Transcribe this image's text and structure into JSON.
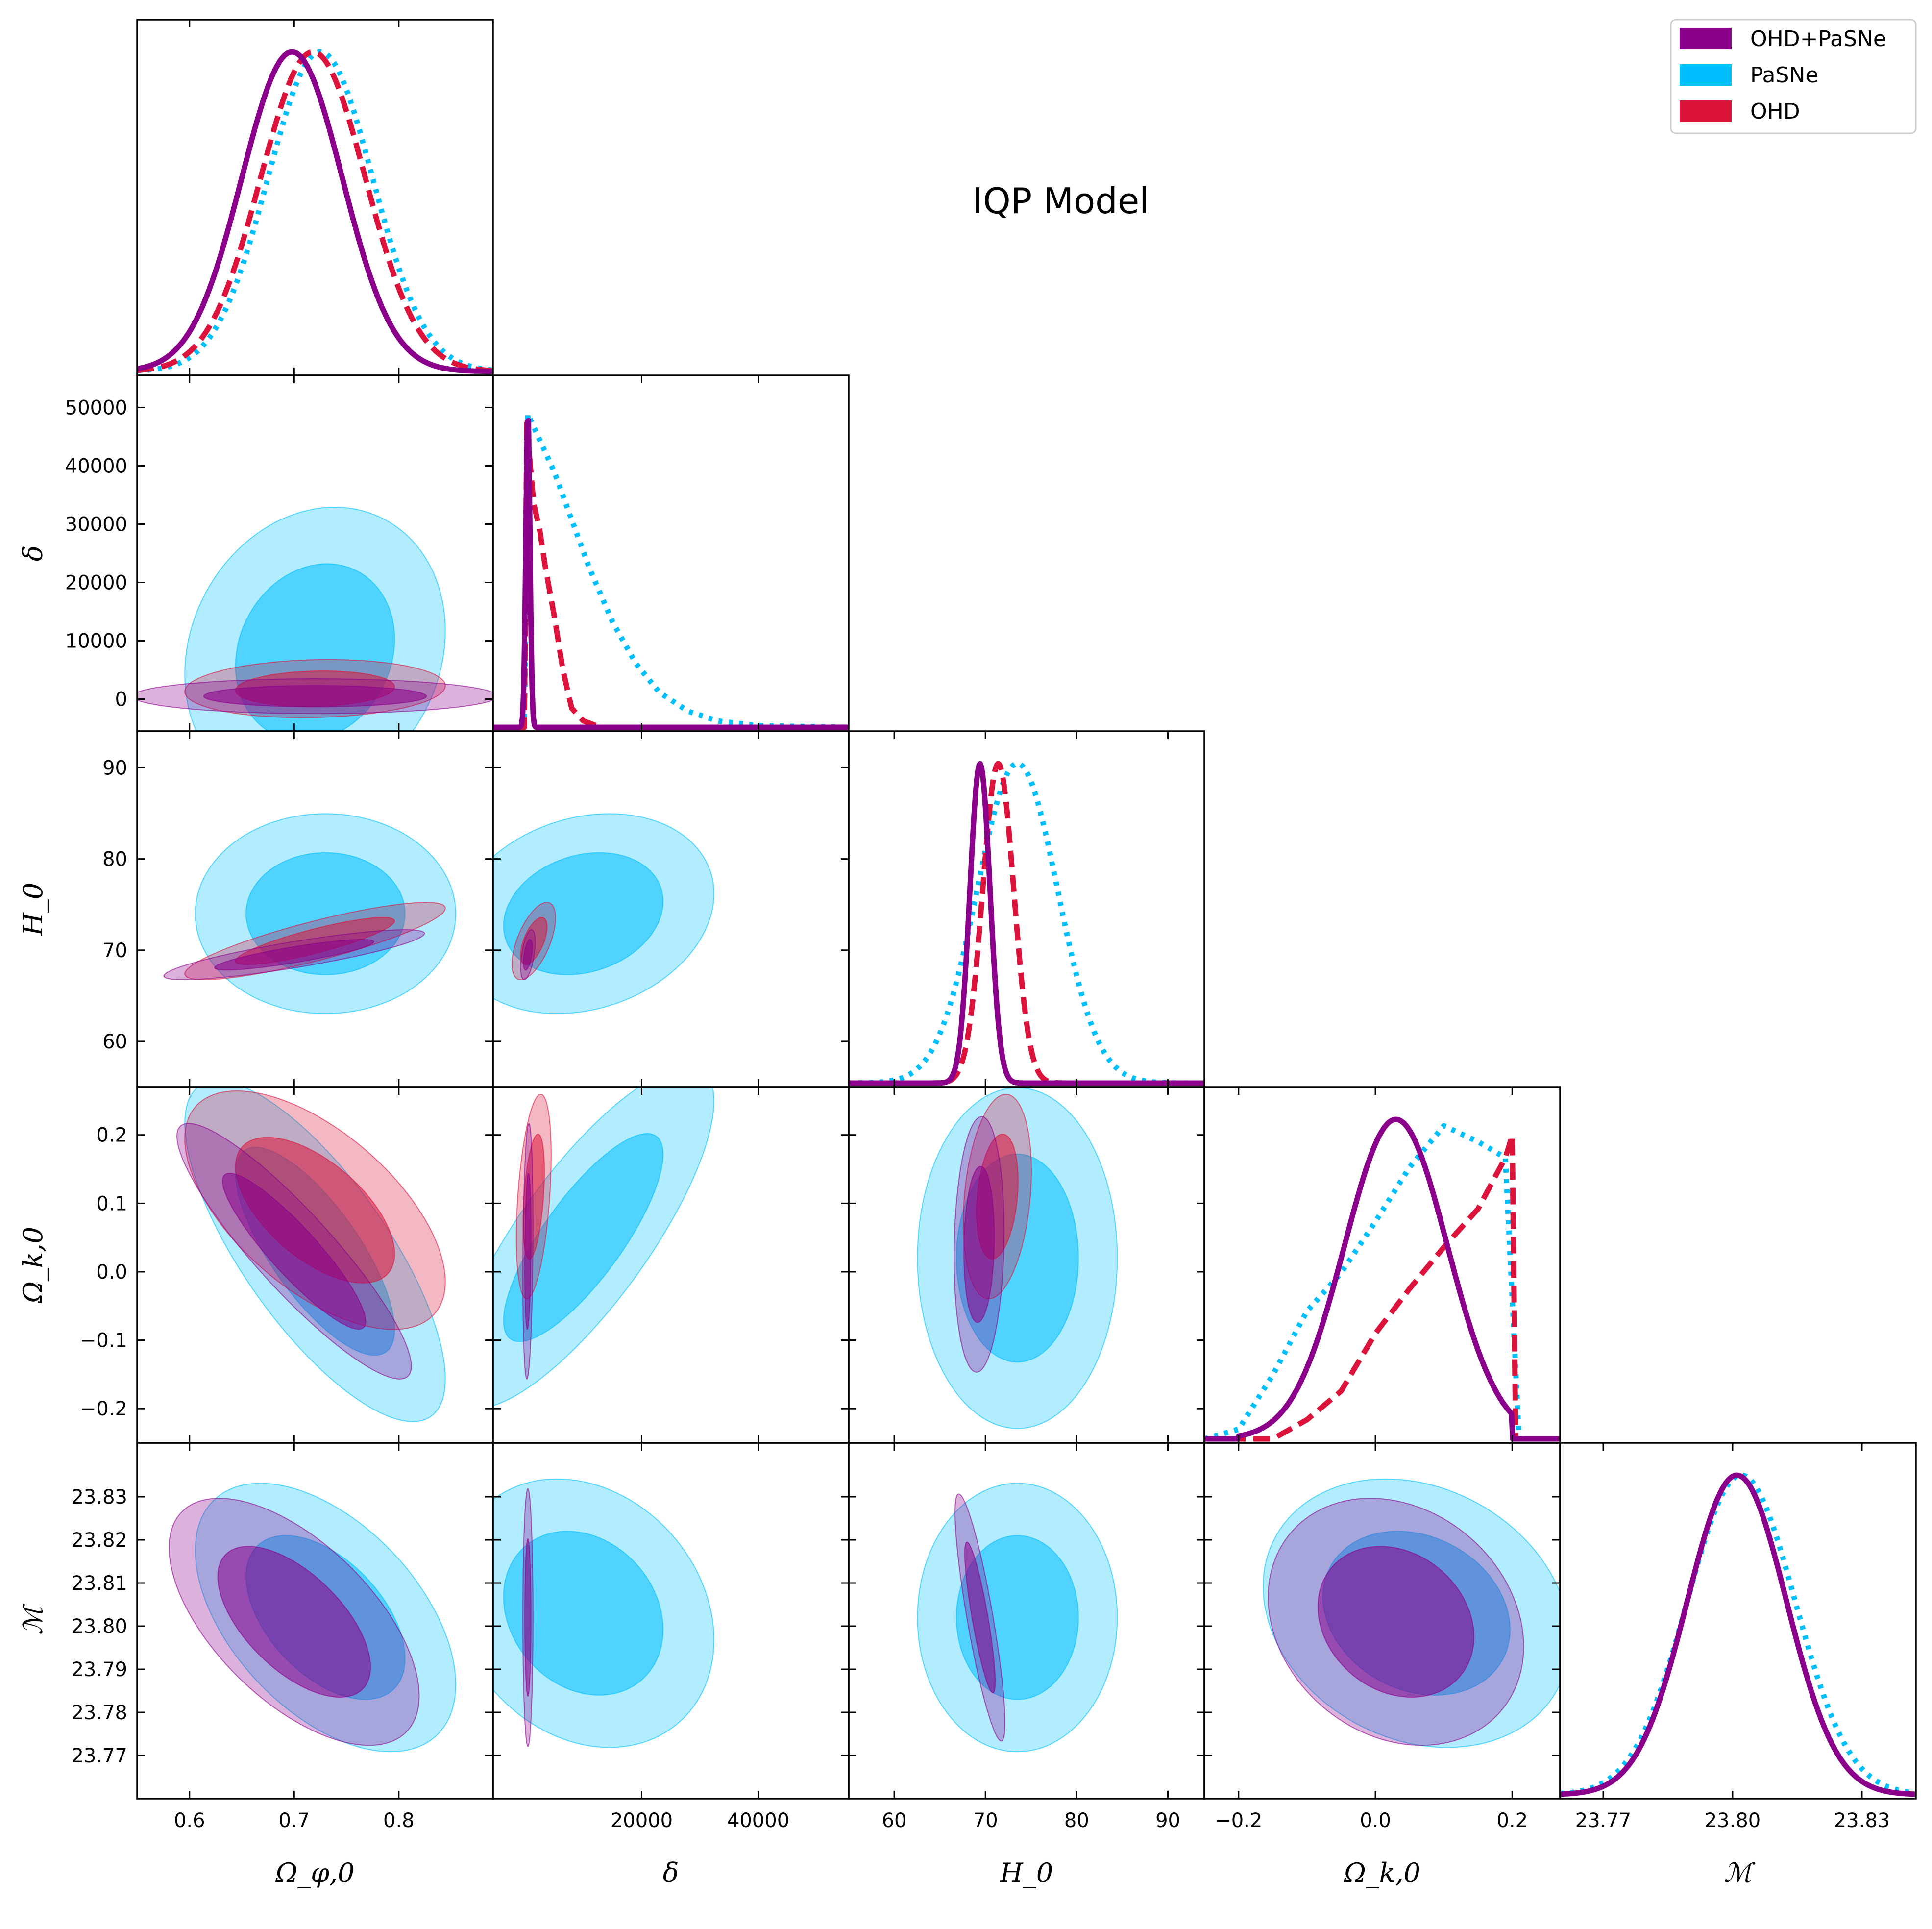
{
  "title": "IQP Model",
  "legend": {
    "placement": "top-right",
    "entries": [
      {
        "label": "OHD+PaSNe",
        "color": "#8b008b",
        "line": "solid"
      },
      {
        "label": "PaSNe",
        "color": "#00bfff",
        "line": "dotted"
      },
      {
        "label": "OHD",
        "color": "#dc143c",
        "line": "dashed"
      }
    ]
  },
  "chart_data": {
    "type": "corner",
    "parameters": [
      {
        "label": "Ω_φ,0",
        "range": [
          0.55,
          0.89
        ],
        "ticks": [
          0.6,
          0.7,
          0.8
        ],
        "tick_labels": [
          "0.6",
          "0.7",
          "0.8"
        ]
      },
      {
        "label": "δ",
        "range": [
          -5500,
          55500
        ],
        "ticks": [
          20000,
          40000
        ],
        "tick_labels": [
          "20000",
          "40000"
        ],
        "y_ticks": [
          0,
          10000,
          20000,
          30000,
          40000,
          50000
        ],
        "y_tick_labels": [
          "0",
          "10000",
          "20000",
          "30000",
          "40000",
          "50000"
        ]
      },
      {
        "label": "H_0",
        "range": [
          55,
          94
        ],
        "ticks": [
          60,
          70,
          80,
          90
        ],
        "tick_labels": [
          "60",
          "70",
          "80",
          "90"
        ]
      },
      {
        "label": "Ω_k,0",
        "range": [
          -0.25,
          0.27
        ],
        "ticks": [
          -0.2,
          0.0,
          0.2
        ],
        "tick_labels": [
          "−0.2",
          "0.0",
          "0.2"
        ],
        "y_ticks": [
          -0.2,
          -0.1,
          0.0,
          0.1,
          0.2
        ],
        "y_tick_labels": [
          "−0.2",
          "−0.1",
          "0.0",
          "0.1",
          "0.2"
        ]
      },
      {
        "label": "ℳ",
        "range": [
          23.76,
          23.8425
        ],
        "ticks": [
          23.77,
          23.8,
          23.83
        ],
        "tick_labels": [
          "23.77",
          "23.80",
          "23.83"
        ],
        "y_ticks": [
          23.77,
          23.78,
          23.79,
          23.8,
          23.81,
          23.82,
          23.83
        ],
        "y_tick_labels": [
          "23.77",
          "23.78",
          "23.79",
          "23.80",
          "23.81",
          "23.82",
          "23.83"
        ]
      }
    ],
    "series": [
      {
        "name": "OHD+PaSNe",
        "color": "#8b008b",
        "line": "solid",
        "posteriors": [
          {
            "param": 0,
            "shape": "gauss",
            "mean": 0.698,
            "sd": 0.048
          },
          {
            "param": 1,
            "shape": "gauss",
            "mean": 500,
            "sd": 350
          },
          {
            "param": 2,
            "shape": "gauss",
            "mean": 69.4,
            "sd": 1.1
          },
          {
            "param": 3,
            "shape": "gauss",
            "mean": 0.03,
            "sd": 0.075,
            "lo": -0.2,
            "hi": 0.2
          },
          {
            "param": 4,
            "shape": "gauss",
            "mean": 23.801,
            "sd": 0.0115
          }
        ],
        "contours": [
          {
            "x": 0,
            "y": 1,
            "cx": 0.72,
            "cy": 500,
            "sx": 0.07,
            "sy": 1200,
            "rho": 0.0
          },
          {
            "x": 0,
            "y": 2,
            "cx": 0.7,
            "cy": 69.5,
            "sx": 0.05,
            "sy": 1.1,
            "rho": 0.85
          },
          {
            "x": 1,
            "y": 2,
            "cx": 500,
            "cy": 69.5,
            "sx": 500,
            "sy": 1.1,
            "rho": 0.5
          },
          {
            "x": 0,
            "y": 3,
            "cx": 0.7,
            "cy": 0.03,
            "sx": 0.045,
            "sy": 0.075,
            "rho": -0.9
          },
          {
            "x": 1,
            "y": 3,
            "cx": 500,
            "cy": 0.03,
            "sx": 350,
            "sy": 0.075,
            "rho": 0.2
          },
          {
            "x": 2,
            "y": 3,
            "cx": 69.3,
            "cy": 0.04,
            "sx": 1.1,
            "sy": 0.075,
            "rho": 0.1
          },
          {
            "x": 0,
            "y": 4,
            "cx": 0.7,
            "cy": 23.801,
            "sx": 0.048,
            "sy": 0.0115,
            "rho": -0.6
          },
          {
            "x": 1,
            "y": 4,
            "cx": 500,
            "cy": 23.802,
            "sx": 350,
            "sy": 0.012,
            "rho": 0.0
          },
          {
            "x": 2,
            "y": 4,
            "cx": 69.4,
            "cy": 23.802,
            "sx": 1.1,
            "sy": 0.0115,
            "rho": -0.85
          },
          {
            "x": 3,
            "y": 4,
            "cx": 0.03,
            "cy": 23.801,
            "sx": 0.075,
            "sy": 0.0115,
            "rho": -0.2
          }
        ]
      },
      {
        "name": "PaSNe",
        "color": "#00bfff",
        "line": "dotted",
        "posteriors": [
          {
            "param": 0,
            "shape": "gauss",
            "mean": 0.725,
            "sd": 0.05
          },
          {
            "param": 1,
            "shape": "curve",
            "x": [
              -5500,
              -100,
              500,
              2500,
              5000,
              8000,
              11000,
              15000,
              19000,
              23000,
              28000,
              33000,
              40000,
              55500
            ],
            "y": [
              0,
              0,
              0.98,
              0.9,
              0.8,
              0.65,
              0.5,
              0.33,
              0.2,
              0.11,
              0.05,
              0.02,
              0.005,
              0
            ]
          },
          {
            "param": 2,
            "shape": "gauss",
            "mean": 73.5,
            "sd": 4.4
          },
          {
            "param": 3,
            "shape": "curve",
            "x": [
              -0.25,
              -0.2,
              -0.15,
              -0.1,
              -0.05,
              0.0,
              0.05,
              0.1,
              0.15,
              0.19,
              0.21,
              0.27
            ],
            "y": [
              0,
              0.03,
              0.2,
              0.4,
              0.52,
              0.68,
              0.85,
              0.98,
              0.93,
              0.88,
              0,
              0
            ]
          },
          {
            "param": 4,
            "shape": "gauss",
            "mean": 23.802,
            "sd": 0.0125
          }
        ],
        "contours": [
          {
            "x": 0,
            "y": 1,
            "cx": 0.72,
            "cy": 8000,
            "sx": 0.05,
            "sy": 10000,
            "rho": 0.15
          },
          {
            "x": 0,
            "y": 2,
            "cx": 0.73,
            "cy": 74,
            "sx": 0.05,
            "sy": 4.4,
            "rho": 0.0
          },
          {
            "x": 1,
            "y": 2,
            "cx": 10000,
            "cy": 74,
            "sx": 9000,
            "sy": 4.4,
            "rho": 0.2
          },
          {
            "x": 0,
            "y": 3,
            "cx": 0.72,
            "cy": 0.03,
            "sx": 0.05,
            "sy": 0.1,
            "rho": -0.75
          },
          {
            "x": 1,
            "y": 3,
            "cx": 10000,
            "cy": 0.05,
            "sx": 9000,
            "sy": 0.1,
            "rho": 0.8
          },
          {
            "x": 2,
            "y": 3,
            "cx": 73.5,
            "cy": 0.02,
            "sx": 4.4,
            "sy": 0.1,
            "rho": 0.0
          },
          {
            "x": 0,
            "y": 4,
            "cx": 0.73,
            "cy": 23.802,
            "sx": 0.05,
            "sy": 0.0125,
            "rho": -0.5
          },
          {
            "x": 1,
            "y": 4,
            "cx": 10000,
            "cy": 23.803,
            "sx": 9000,
            "sy": 0.0125,
            "rho": -0.2
          },
          {
            "x": 2,
            "y": 4,
            "cx": 73.5,
            "cy": 23.802,
            "sx": 4.4,
            "sy": 0.0125,
            "rho": 0.0
          },
          {
            "x": 3,
            "y": 4,
            "cx": 0.06,
            "cy": 23.803,
            "sx": 0.09,
            "sy": 0.0125,
            "rho": -0.2
          }
        ]
      },
      {
        "name": "OHD",
        "color": "#dc143c",
        "line": "dashed",
        "posteriors": [
          {
            "param": 0,
            "shape": "gauss",
            "mean": 0.718,
            "sd": 0.05
          },
          {
            "param": 1,
            "shape": "curve",
            "x": [
              -5500,
              -100,
              300,
              900,
              1500,
              2500,
              3500,
              5000,
              6500,
              8000,
              10000,
              13000,
              55500
            ],
            "y": [
              0,
              0,
              0.95,
              0.82,
              0.7,
              0.62,
              0.5,
              0.35,
              0.18,
              0.06,
              0.02,
              0,
              0
            ]
          },
          {
            "param": 2,
            "shape": "gauss",
            "mean": 71.4,
            "sd": 1.7
          },
          {
            "param": 3,
            "shape": "curve",
            "x": [
              -0.25,
              -0.15,
              -0.1,
              -0.05,
              0.0,
              0.05,
              0.1,
              0.15,
              0.19,
              0.2,
              0.205,
              0.27
            ],
            "y": [
              0,
              0,
              0.06,
              0.15,
              0.33,
              0.47,
              0.6,
              0.72,
              0.88,
              0.95,
              0,
              0
            ]
          }
        ],
        "contours": [
          {
            "x": 0,
            "y": 1,
            "cx": 0.72,
            "cy": 1800,
            "sx": 0.05,
            "sy": 2000,
            "rho": 0.1
          },
          {
            "x": 0,
            "y": 2,
            "cx": 0.72,
            "cy": 71,
            "sx": 0.05,
            "sy": 1.7,
            "rho": 0.85
          },
          {
            "x": 1,
            "y": 2,
            "cx": 1500,
            "cy": 71,
            "sx": 1500,
            "sy": 1.7,
            "rho": 0.6
          },
          {
            "x": 0,
            "y": 3,
            "cx": 0.72,
            "cy": 0.09,
            "sx": 0.05,
            "sy": 0.07,
            "rho": -0.6
          },
          {
            "x": 1,
            "y": 3,
            "cx": 1500,
            "cy": 0.11,
            "sx": 1200,
            "sy": 0.06,
            "rho": 0.4
          },
          {
            "x": 2,
            "y": 3,
            "cx": 71.3,
            "cy": 0.11,
            "sx": 1.5,
            "sy": 0.06,
            "rho": 0.25
          }
        ]
      }
    ]
  }
}
